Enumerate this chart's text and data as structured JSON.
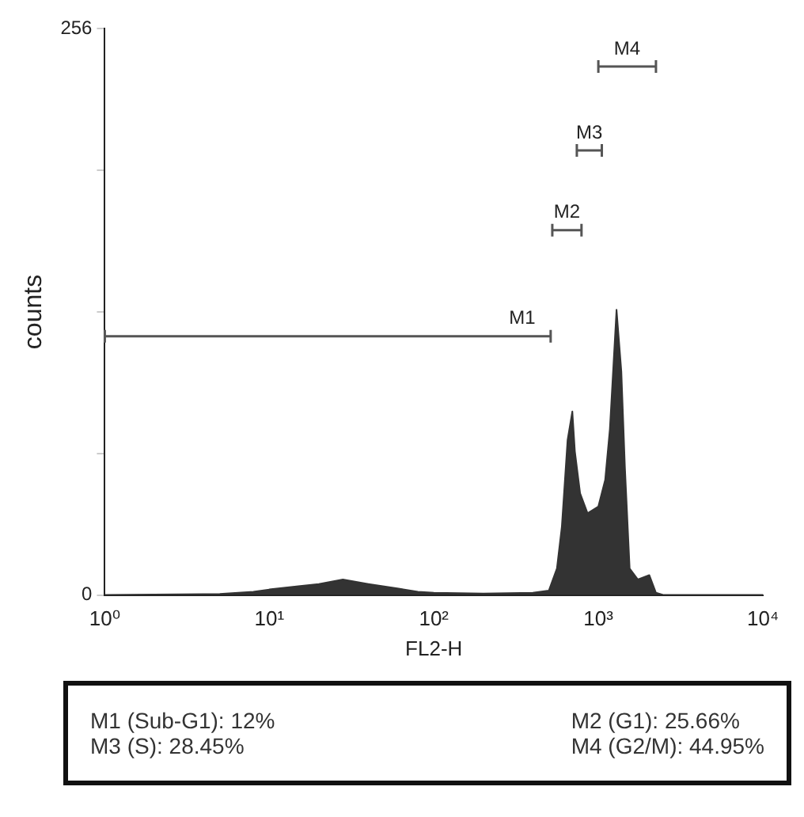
{
  "chart_data": {
    "type": "area",
    "xlabel": "FL2-H",
    "ylabel": "counts",
    "x": [
      1,
      5,
      8,
      10,
      15,
      20,
      28,
      40,
      60,
      80,
      100,
      200,
      400,
      500,
      560,
      600,
      650,
      695,
      720,
      775,
      860,
      1000,
      1100,
      1175,
      1290,
      1380,
      1450,
      1550,
      1740,
      2040,
      2240,
      2500,
      10000
    ],
    "series": [
      {
        "color": "#333333",
        "values": [
          0,
          0.5,
          1.5,
          2.5,
          4,
          5,
          7,
          5,
          3,
          1.5,
          1,
          0.7,
          1,
          2,
          12,
          31,
          70,
          83,
          65,
          46,
          37,
          40,
          52,
          75,
          129,
          101,
          58,
          12,
          7,
          9,
          1,
          0,
          0
        ]
      },
      {
        "type": "line",
        "name": "M1",
        "color": "#555555",
        "x": [
          1,
          513
        ],
        "values": [
          117,
          117
        ]
      },
      {
        "type": "line",
        "name": "M2",
        "color": "#555555",
        "x": [
          525,
          790
        ],
        "values": [
          165,
          165
        ]
      },
      {
        "type": "line",
        "name": "M3",
        "color": "#555555",
        "x": [
          740,
          1050
        ],
        "values": [
          201,
          201
        ]
      },
      {
        "type": "line",
        "name": "M4",
        "color": "#555555",
        "x": [
          1000,
          2240
        ],
        "values": [
          239,
          239
        ]
      }
    ],
    "log": "x",
    "xlim": [
      1,
      10000
    ],
    "ylim": [
      0,
      256
    ],
    "xticks": [
      {
        "value": 1,
        "label": "10⁰"
      },
      {
        "value": 10,
        "label": "10¹"
      },
      {
        "value": 100,
        "label": "10²"
      },
      {
        "value": 1000,
        "label": "10³"
      },
      {
        "value": 10000,
        "label": "10⁴"
      }
    ],
    "yticks": [
      0,
      {
        "value": 64,
        "label": null
      },
      {
        "value": 128,
        "label": null
      },
      {
        "value": 192,
        "label": null
      },
      256
    ],
    "annotations": [
      "M1 (Sub-G1): 12%",
      "M2 (G1): 25.66%",
      "M3 (S): 28.45%",
      "M4 (G2/M): 44.95%"
    ],
    "grid": false,
    "legend": false
  }
}
